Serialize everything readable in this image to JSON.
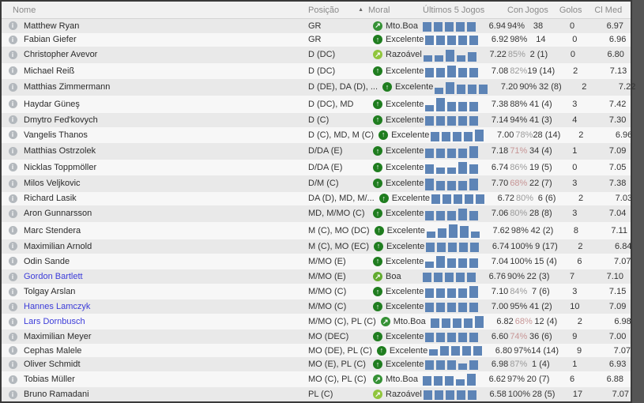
{
  "table": {
    "columns": {
      "name": "Nome",
      "position": "Posição",
      "moral": "Moral",
      "last5": "Últimos 5 Jogos",
      "condition": "Con",
      "games": "Jogos",
      "goals": "Golos",
      "avg": "Cl Med"
    },
    "sort": {
      "column": "Posição",
      "direction": "asc",
      "icon": "sort-asc-icon"
    }
  },
  "icons": {
    "info": "i",
    "sort_asc": "▲",
    "morale_excellent_arrow": "↑",
    "morale_other_arrow": "↗"
  },
  "colors": {
    "row_odd": "#e9e9e9",
    "row_even": "#f7f7f7",
    "bar_blue": "#5d84b6",
    "link_name": "#3c3cd9",
    "morale_excellent": "#1f7d1f",
    "morale_vgood": "#359135",
    "morale_good": "#62ab2f",
    "morale_fair": "#90c53c",
    "condition_high": "#3a3a3a",
    "condition_mid": "#9b9b9b",
    "condition_low": "#c79696"
  },
  "players": [
    {
      "name": "Matthew Ryan",
      "position": "GR",
      "moral": "Mto.Boa",
      "moral_level": "vgood",
      "last5_bars": [
        3,
        3,
        3,
        3,
        3
      ],
      "last5_rating": "6.94",
      "condition": "94%",
      "condition_level": "high",
      "games": "38",
      "goals": "0",
      "avg_rating": "6.97",
      "highlighted": false
    },
    {
      "name": "Fabian Giefer",
      "position": "GR",
      "moral": "Excelente",
      "moral_level": "excellent",
      "last5_bars": [
        3,
        3,
        3,
        3,
        3
      ],
      "last5_rating": "6.92",
      "condition": "98%",
      "condition_level": "high",
      "games": "14",
      "goals": "0",
      "avg_rating": "6.96",
      "highlighted": false
    },
    {
      "name": "Christopher Avevor",
      "position": "D (DC)",
      "moral": "Razoável",
      "moral_level": "fair",
      "last5_bars": [
        2,
        2,
        4,
        2,
        3
      ],
      "last5_rating": "7.22",
      "condition": "85%",
      "condition_level": "mid",
      "games": "2 (1)",
      "goals": "0",
      "avg_rating": "6.80",
      "highlighted": false
    },
    {
      "name": "Michael Reiß",
      "position": "D (DC)",
      "moral": "Excelente",
      "moral_level": "excellent",
      "last5_bars": [
        3,
        3,
        4,
        3,
        3
      ],
      "last5_rating": "7.08",
      "condition": "82%",
      "condition_level": "mid",
      "games": "19 (14)",
      "goals": "2",
      "avg_rating": "7.13",
      "highlighted": false
    },
    {
      "name": "Matthias Zimmermann",
      "position": "D (DE), DA (D), ...",
      "moral": "Excelente",
      "moral_level": "excellent",
      "last5_bars": [
        2,
        4,
        3,
        3,
        3
      ],
      "last5_rating": "7.20",
      "condition": "90%",
      "condition_level": "high",
      "games": "32 (8)",
      "goals": "2",
      "avg_rating": "7.22",
      "highlighted": false
    },
    {
      "name": "Haydar Güneş",
      "position": "D (DC), MD",
      "moral": "Excelente",
      "moral_level": "excellent",
      "last5_bars": [
        2,
        5,
        3,
        3,
        3
      ],
      "last5_rating": "7.38",
      "condition": "88%",
      "condition_level": "high",
      "games": "41 (4)",
      "goals": "3",
      "avg_rating": "7.42",
      "highlighted": false
    },
    {
      "name": "Dmytro Fed'kovych",
      "position": "D (C)",
      "moral": "Excelente",
      "moral_level": "excellent",
      "last5_bars": [
        3,
        3,
        3,
        3,
        3
      ],
      "last5_rating": "7.14",
      "condition": "94%",
      "condition_level": "high",
      "games": "41 (3)",
      "goals": "4",
      "avg_rating": "7.30",
      "highlighted": false
    },
    {
      "name": "Vangelis Thanos",
      "position": "D (C), MD, M (C)",
      "moral": "Excelente",
      "moral_level": "excellent",
      "last5_bars": [
        3,
        3,
        3,
        3,
        4
      ],
      "last5_rating": "7.00",
      "condition": "78%",
      "condition_level": "mid",
      "games": "28 (14)",
      "goals": "2",
      "avg_rating": "6.96",
      "highlighted": false
    },
    {
      "name": "Matthias Ostrzolek",
      "position": "D/DA (E)",
      "moral": "Excelente",
      "moral_level": "excellent",
      "last5_bars": [
        3,
        3,
        3,
        3,
        4
      ],
      "last5_rating": "7.18",
      "condition": "71%",
      "condition_level": "low",
      "games": "34 (4)",
      "goals": "1",
      "avg_rating": "7.09",
      "highlighted": false
    },
    {
      "name": "Nicklas Toppmöller",
      "position": "D/DA (E)",
      "moral": "Excelente",
      "moral_level": "excellent",
      "last5_bars": [
        3,
        2,
        2,
        4,
        3
      ],
      "last5_rating": "6.74",
      "condition": "86%",
      "condition_level": "mid",
      "games": "19 (5)",
      "goals": "0",
      "avg_rating": "7.05",
      "highlighted": false
    },
    {
      "name": "Milos Veljkovic",
      "position": "D/M (C)",
      "moral": "Excelente",
      "moral_level": "excellent",
      "last5_bars": [
        4,
        3,
        3,
        3,
        4
      ],
      "last5_rating": "7.70",
      "condition": "68%",
      "condition_level": "low",
      "games": "22 (7)",
      "goals": "3",
      "avg_rating": "7.38",
      "highlighted": false
    },
    {
      "name": "Richard Lasik",
      "position": "DA (D), MD, M/...",
      "moral": "Excelente",
      "moral_level": "excellent",
      "last5_bars": [
        3,
        3,
        3,
        3,
        3
      ],
      "last5_rating": "6.72",
      "condition": "80%",
      "condition_level": "mid",
      "games": "6 (6)",
      "goals": "2",
      "avg_rating": "7.03",
      "highlighted": false
    },
    {
      "name": "Aron Gunnarsson",
      "position": "MD, M/MO (C)",
      "moral": "Excelente",
      "moral_level": "excellent",
      "last5_bars": [
        3,
        3,
        3,
        4,
        3
      ],
      "last5_rating": "7.06",
      "condition": "80%",
      "condition_level": "mid",
      "games": "28 (8)",
      "goals": "3",
      "avg_rating": "7.04",
      "highlighted": false
    },
    {
      "name": "Marc Stendera",
      "position": "M (C), MO (DC)",
      "moral": "Excelente",
      "moral_level": "excellent",
      "last5_bars": [
        2,
        3,
        5,
        4,
        2
      ],
      "last5_rating": "7.62",
      "condition": "98%",
      "condition_level": "high",
      "games": "42 (2)",
      "goals": "8",
      "avg_rating": "7.11",
      "highlighted": false
    },
    {
      "name": "Maximilian Arnold",
      "position": "M (C), MO (EC)",
      "moral": "Excelente",
      "moral_level": "excellent",
      "last5_bars": [
        3,
        3,
        3,
        3,
        3
      ],
      "last5_rating": "6.74",
      "condition": "100%",
      "condition_level": "high",
      "games": "9 (17)",
      "goals": "2",
      "avg_rating": "6.84",
      "highlighted": false
    },
    {
      "name": "Odin Sande",
      "position": "M/MO (E)",
      "moral": "Excelente",
      "moral_level": "excellent",
      "last5_bars": [
        2,
        4,
        3,
        3,
        3
      ],
      "last5_rating": "7.04",
      "condition": "100%",
      "condition_level": "high",
      "games": "15 (4)",
      "goals": "6",
      "avg_rating": "7.07",
      "highlighted": false
    },
    {
      "name": "Gordon Bartlett",
      "position": "M/MO (E)",
      "moral": "Boa",
      "moral_level": "good",
      "last5_bars": [
        3,
        3,
        3,
        3,
        3
      ],
      "last5_rating": "6.76",
      "condition": "90%",
      "condition_level": "high",
      "games": "22 (3)",
      "goals": "7",
      "avg_rating": "7.10",
      "highlighted": true
    },
    {
      "name": "Tolgay Arslan",
      "position": "M/MO (C)",
      "moral": "Excelente",
      "moral_level": "excellent",
      "last5_bars": [
        3,
        3,
        3,
        3,
        4
      ],
      "last5_rating": "7.10",
      "condition": "84%",
      "condition_level": "mid",
      "games": "7 (6)",
      "goals": "3",
      "avg_rating": "7.15",
      "highlighted": false
    },
    {
      "name": "Hannes Lamczyk",
      "position": "M/MO (C)",
      "moral": "Excelente",
      "moral_level": "excellent",
      "last5_bars": [
        3,
        3,
        3,
        3,
        3
      ],
      "last5_rating": "7.00",
      "condition": "95%",
      "condition_level": "high",
      "games": "41 (2)",
      "goals": "10",
      "avg_rating": "7.09",
      "highlighted": true
    },
    {
      "name": "Lars Dornbusch",
      "position": "M/MO (C), PL (C)",
      "moral": "Mto.Boa",
      "moral_level": "vgood",
      "last5_bars": [
        3,
        3,
        3,
        3,
        4
      ],
      "last5_rating": "6.82",
      "condition": "68%",
      "condition_level": "low",
      "games": "12 (4)",
      "goals": "2",
      "avg_rating": "6.98",
      "highlighted": true
    },
    {
      "name": "Maximilian Meyer",
      "position": "MO (DEC)",
      "moral": "Excelente",
      "moral_level": "excellent",
      "last5_bars": [
        3,
        3,
        3,
        3,
        3
      ],
      "last5_rating": "6.60",
      "condition": "74%",
      "condition_level": "low",
      "games": "36 (6)",
      "goals": "9",
      "avg_rating": "7.00",
      "highlighted": false
    },
    {
      "name": "Cephas Malele",
      "position": "MO (DE), PL (C)",
      "moral": "Excelente",
      "moral_level": "excellent",
      "last5_bars": [
        2,
        3,
        3,
        3,
        3
      ],
      "last5_rating": "6.80",
      "condition": "97%",
      "condition_level": "high",
      "games": "14 (14)",
      "goals": "9",
      "avg_rating": "7.07",
      "highlighted": false
    },
    {
      "name": "Oliver Schmidt",
      "position": "MO (E), PL (C)",
      "moral": "Excelente",
      "moral_level": "excellent",
      "last5_bars": [
        3,
        3,
        3,
        2,
        3
      ],
      "last5_rating": "6.98",
      "condition": "87%",
      "condition_level": "mid",
      "games": "1 (4)",
      "goals": "1",
      "avg_rating": "6.93",
      "highlighted": false
    },
    {
      "name": "Tobias Müller",
      "position": "MO (C), PL (C)",
      "moral": "Mto.Boa",
      "moral_level": "vgood",
      "last5_bars": [
        3,
        3,
        3,
        2,
        4
      ],
      "last5_rating": "6.62",
      "condition": "97%",
      "condition_level": "high",
      "games": "20 (7)",
      "goals": "6",
      "avg_rating": "6.88",
      "highlighted": false
    },
    {
      "name": "Bruno Ramadani",
      "position": "PL (C)",
      "moral": "Razoável",
      "moral_level": "fair",
      "last5_bars": [
        3,
        3,
        3,
        3,
        3
      ],
      "last5_rating": "6.58",
      "condition": "100%",
      "condition_level": "high",
      "games": "28 (5)",
      "goals": "17",
      "avg_rating": "7.07",
      "highlighted": false
    }
  ]
}
